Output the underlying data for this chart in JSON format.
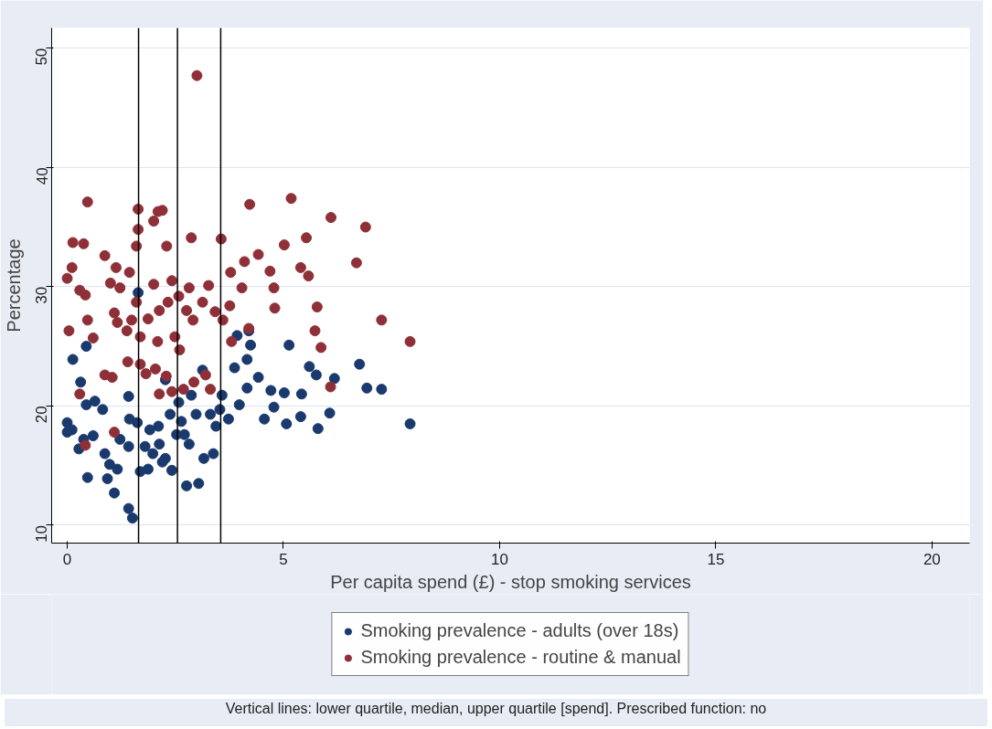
{
  "chart_data": {
    "type": "scatter",
    "xlabel": "Per capita spend (£) - stop smoking services",
    "ylabel": "Percentage",
    "annotations": [
      "Vertical lines: lower quartile, median, upper quartile [spend]. Prescribed function: no"
    ],
    "xlim": [
      -0.36,
      20.87
    ],
    "ylim": [
      8.5,
      51.7
    ],
    "xticks": [
      0,
      5,
      10,
      15,
      20
    ],
    "yticks": [
      10,
      20,
      30,
      40,
      50
    ],
    "grid": "y",
    "legend": "bottom",
    "marker": "circle",
    "ref_lines": [
      {
        "axis": "x",
        "value": 1.65,
        "label": null,
        "color": "#000000"
      },
      {
        "axis": "x",
        "value": 2.55,
        "label": null,
        "color": "#000000"
      },
      {
        "axis": "x",
        "value": 3.55,
        "label": null,
        "color": "#000000"
      }
    ],
    "series": [
      {
        "name": "Smoking prevalence - adults (over 18s)",
        "color": "#1a3a6e",
        "x": [
          1.64,
          0.44,
          0.13,
          0.31,
          0.44,
          0,
          0.11,
          0,
          0.38,
          0.6,
          0.27,
          0.47,
          0.87,
          0.98,
          0.93,
          1.09,
          1.16,
          1.22,
          1.42,
          1.42,
          1.51,
          0.82,
          1.42,
          1.62,
          1.8,
          1.87,
          1.69,
          1.98,
          2.13,
          2.27,
          2.11,
          2.38,
          2.58,
          2.71,
          2.76,
          3.04,
          3.16,
          2.98,
          2.87,
          3.13,
          3.31,
          3.44,
          3.38,
          3.53,
          3.58,
          3.73,
          3.87,
          3.98,
          4.16,
          4.24,
          4.42,
          4.56,
          4.78,
          4.71,
          5.02,
          5.07,
          5.13,
          5.4,
          5.42,
          5.6,
          5.76,
          5.8,
          6.07,
          6.18,
          6.76,
          6.93,
          7.27,
          7.93,
          4.16,
          3.93,
          4.2,
          2.27,
          2.2,
          2.42,
          1.91,
          0.64,
          1.44,
          2.53,
          2.64,
          2.82
        ],
        "values": [
          29.5,
          25.0,
          23.9,
          22.0,
          20.1,
          18.6,
          18.0,
          17.8,
          17.2,
          17.5,
          16.4,
          14.0,
          16.0,
          15.1,
          13.9,
          12.7,
          14.7,
          17.2,
          16.6,
          11.4,
          10.6,
          19.7,
          20.8,
          18.6,
          16.6,
          14.7,
          14.5,
          16.0,
          16.8,
          15.6,
          18.3,
          19.3,
          20.3,
          17.6,
          13.3,
          13.5,
          15.6,
          19.3,
          20.9,
          23.0,
          19.3,
          18.3,
          16.0,
          19.7,
          20.9,
          18.9,
          23.2,
          20.1,
          21.5,
          25.1,
          22.4,
          18.9,
          19.9,
          21.3,
          21.1,
          18.5,
          25.1,
          19.1,
          21.0,
          23.3,
          22.6,
          18.1,
          19.4,
          22.3,
          23.5,
          21.5,
          21.4,
          18.5,
          23.9,
          25.9,
          26.3,
          22.2,
          15.3,
          14.6,
          18.0,
          20.4,
          18.9,
          17.6,
          18.7,
          16.8
        ]
      },
      {
        "name": "Smoking prevalence - routine & manual",
        "color": "#8f3038",
        "x": [
          3.0,
          0.47,
          1.64,
          2.1,
          2.2,
          1.64,
          2.0,
          1.6,
          0.13,
          0.38,
          0.87,
          2.3,
          2.87,
          3.56,
          4.22,
          5.18,
          6.1,
          6.9,
          4.42,
          5.02,
          5.53,
          4.1,
          5.4,
          0.11,
          0,
          1.13,
          1.44,
          1.0,
          0.29,
          0.42,
          1.22,
          2.0,
          2.42,
          2.82,
          3.27,
          3.78,
          4.04,
          4.69,
          4.78,
          5.58,
          6.69,
          7.27,
          7.93,
          0.04,
          0.47,
          0.6,
          1.09,
          1.16,
          1.38,
          1.49,
          1.6,
          1.87,
          2.13,
          2.33,
          2.58,
          2.76,
          2.91,
          3.13,
          3.42,
          3.6,
          3.76,
          4.2,
          4.8,
          5.78,
          5.73,
          3.8,
          1.69,
          2.09,
          2.49,
          2.6,
          0.87,
          1.04,
          1.4,
          1.69,
          1.82,
          2.13,
          2.29,
          2.42,
          2.69,
          2.93,
          3.2,
          3.31,
          2.04,
          0.29,
          1.09,
          0.42,
          6.09,
          5.87
        ],
        "values": [
          47.7,
          37.1,
          36.5,
          36.3,
          36.4,
          34.8,
          35.5,
          33.4,
          33.7,
          33.6,
          32.6,
          33.4,
          34.1,
          34.0,
          36.9,
          37.4,
          35.8,
          35.0,
          32.7,
          33.5,
          34.1,
          32.1,
          31.6,
          31.6,
          30.7,
          31.6,
          31.2,
          30.3,
          29.7,
          29.3,
          29.9,
          30.2,
          30.5,
          29.9,
          30.1,
          31.2,
          29.9,
          31.3,
          29.9,
          30.9,
          32.0,
          27.2,
          25.4,
          26.3,
          27.2,
          25.7,
          27.8,
          27.0,
          26.3,
          27.2,
          28.7,
          27.3,
          28.0,
          28.7,
          29.2,
          28.0,
          27.2,
          28.7,
          27.9,
          27.2,
          28.4,
          26.5,
          28.2,
          28.3,
          26.3,
          25.4,
          25.8,
          25.4,
          25.8,
          24.7,
          22.6,
          22.4,
          23.7,
          23.5,
          22.7,
          21.0,
          22.5,
          21.2,
          21.4,
          22.0,
          22.6,
          21.4,
          23.1,
          21.0,
          17.8,
          16.7,
          21.6,
          24.9
        ]
      }
    ]
  }
}
